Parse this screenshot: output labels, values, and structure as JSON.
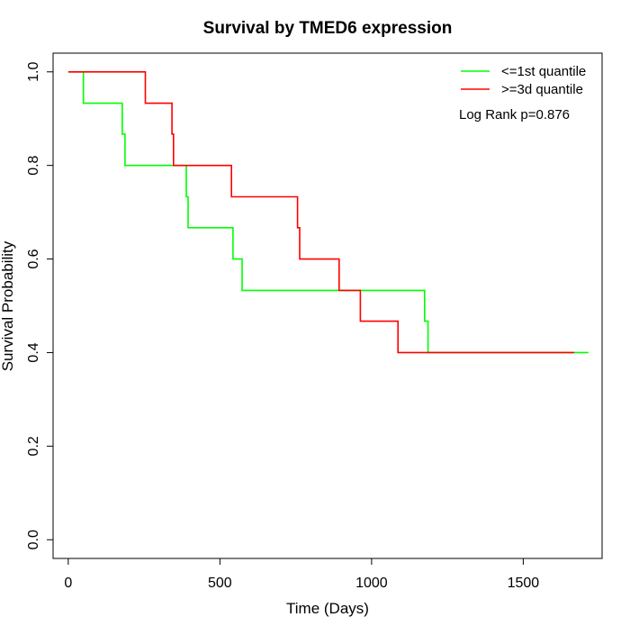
{
  "chart_data": {
    "type": "line",
    "title": "Survival by TMED6 expression",
    "xlabel": "Time (Days)",
    "ylabel": "Survival Probability",
    "xlim": [
      -50,
      1760
    ],
    "ylim": [
      -0.04,
      1.04
    ],
    "x_ticks": [
      0,
      500,
      1000,
      1500
    ],
    "y_ticks": [
      0.0,
      0.2,
      0.4,
      0.6,
      0.8,
      1.0
    ],
    "x_tick_labels": [
      "0",
      "500",
      "1000",
      "1500"
    ],
    "y_tick_labels": [
      "0.0",
      "0.2",
      "0.4",
      "0.6",
      "0.8",
      "1.0"
    ],
    "grid": false,
    "legend_position": "top-right",
    "annotation": "Log Rank p=0.876",
    "series": [
      {
        "name": "<=1st quantile",
        "color": "#00ff00",
        "step_points": [
          [
            0,
            1.0
          ],
          [
            50,
            1.0
          ],
          [
            50,
            0.933
          ],
          [
            178,
            0.933
          ],
          [
            178,
            0.867
          ],
          [
            187,
            0.867
          ],
          [
            187,
            0.8
          ],
          [
            389,
            0.8
          ],
          [
            389,
            0.733
          ],
          [
            395,
            0.733
          ],
          [
            395,
            0.667
          ],
          [
            543,
            0.667
          ],
          [
            543,
            0.6
          ],
          [
            573,
            0.6
          ],
          [
            573,
            0.533
          ],
          [
            1175,
            0.533
          ],
          [
            1175,
            0.467
          ],
          [
            1186,
            0.467
          ],
          [
            1186,
            0.4
          ],
          [
            1715,
            0.4
          ]
        ]
      },
      {
        "name": ">=3d quantile",
        "color": "#ff0000",
        "step_points": [
          [
            0,
            1.0
          ],
          [
            254,
            1.0
          ],
          [
            254,
            0.933
          ],
          [
            342,
            0.933
          ],
          [
            342,
            0.867
          ],
          [
            347,
            0.867
          ],
          [
            347,
            0.8
          ],
          [
            538,
            0.8
          ],
          [
            538,
            0.733
          ],
          [
            756,
            0.733
          ],
          [
            756,
            0.667
          ],
          [
            763,
            0.667
          ],
          [
            763,
            0.6
          ],
          [
            893,
            0.6
          ],
          [
            893,
            0.533
          ],
          [
            963,
            0.533
          ],
          [
            963,
            0.467
          ],
          [
            1087,
            0.467
          ],
          [
            1087,
            0.4
          ],
          [
            1668,
            0.4
          ]
        ]
      }
    ]
  }
}
